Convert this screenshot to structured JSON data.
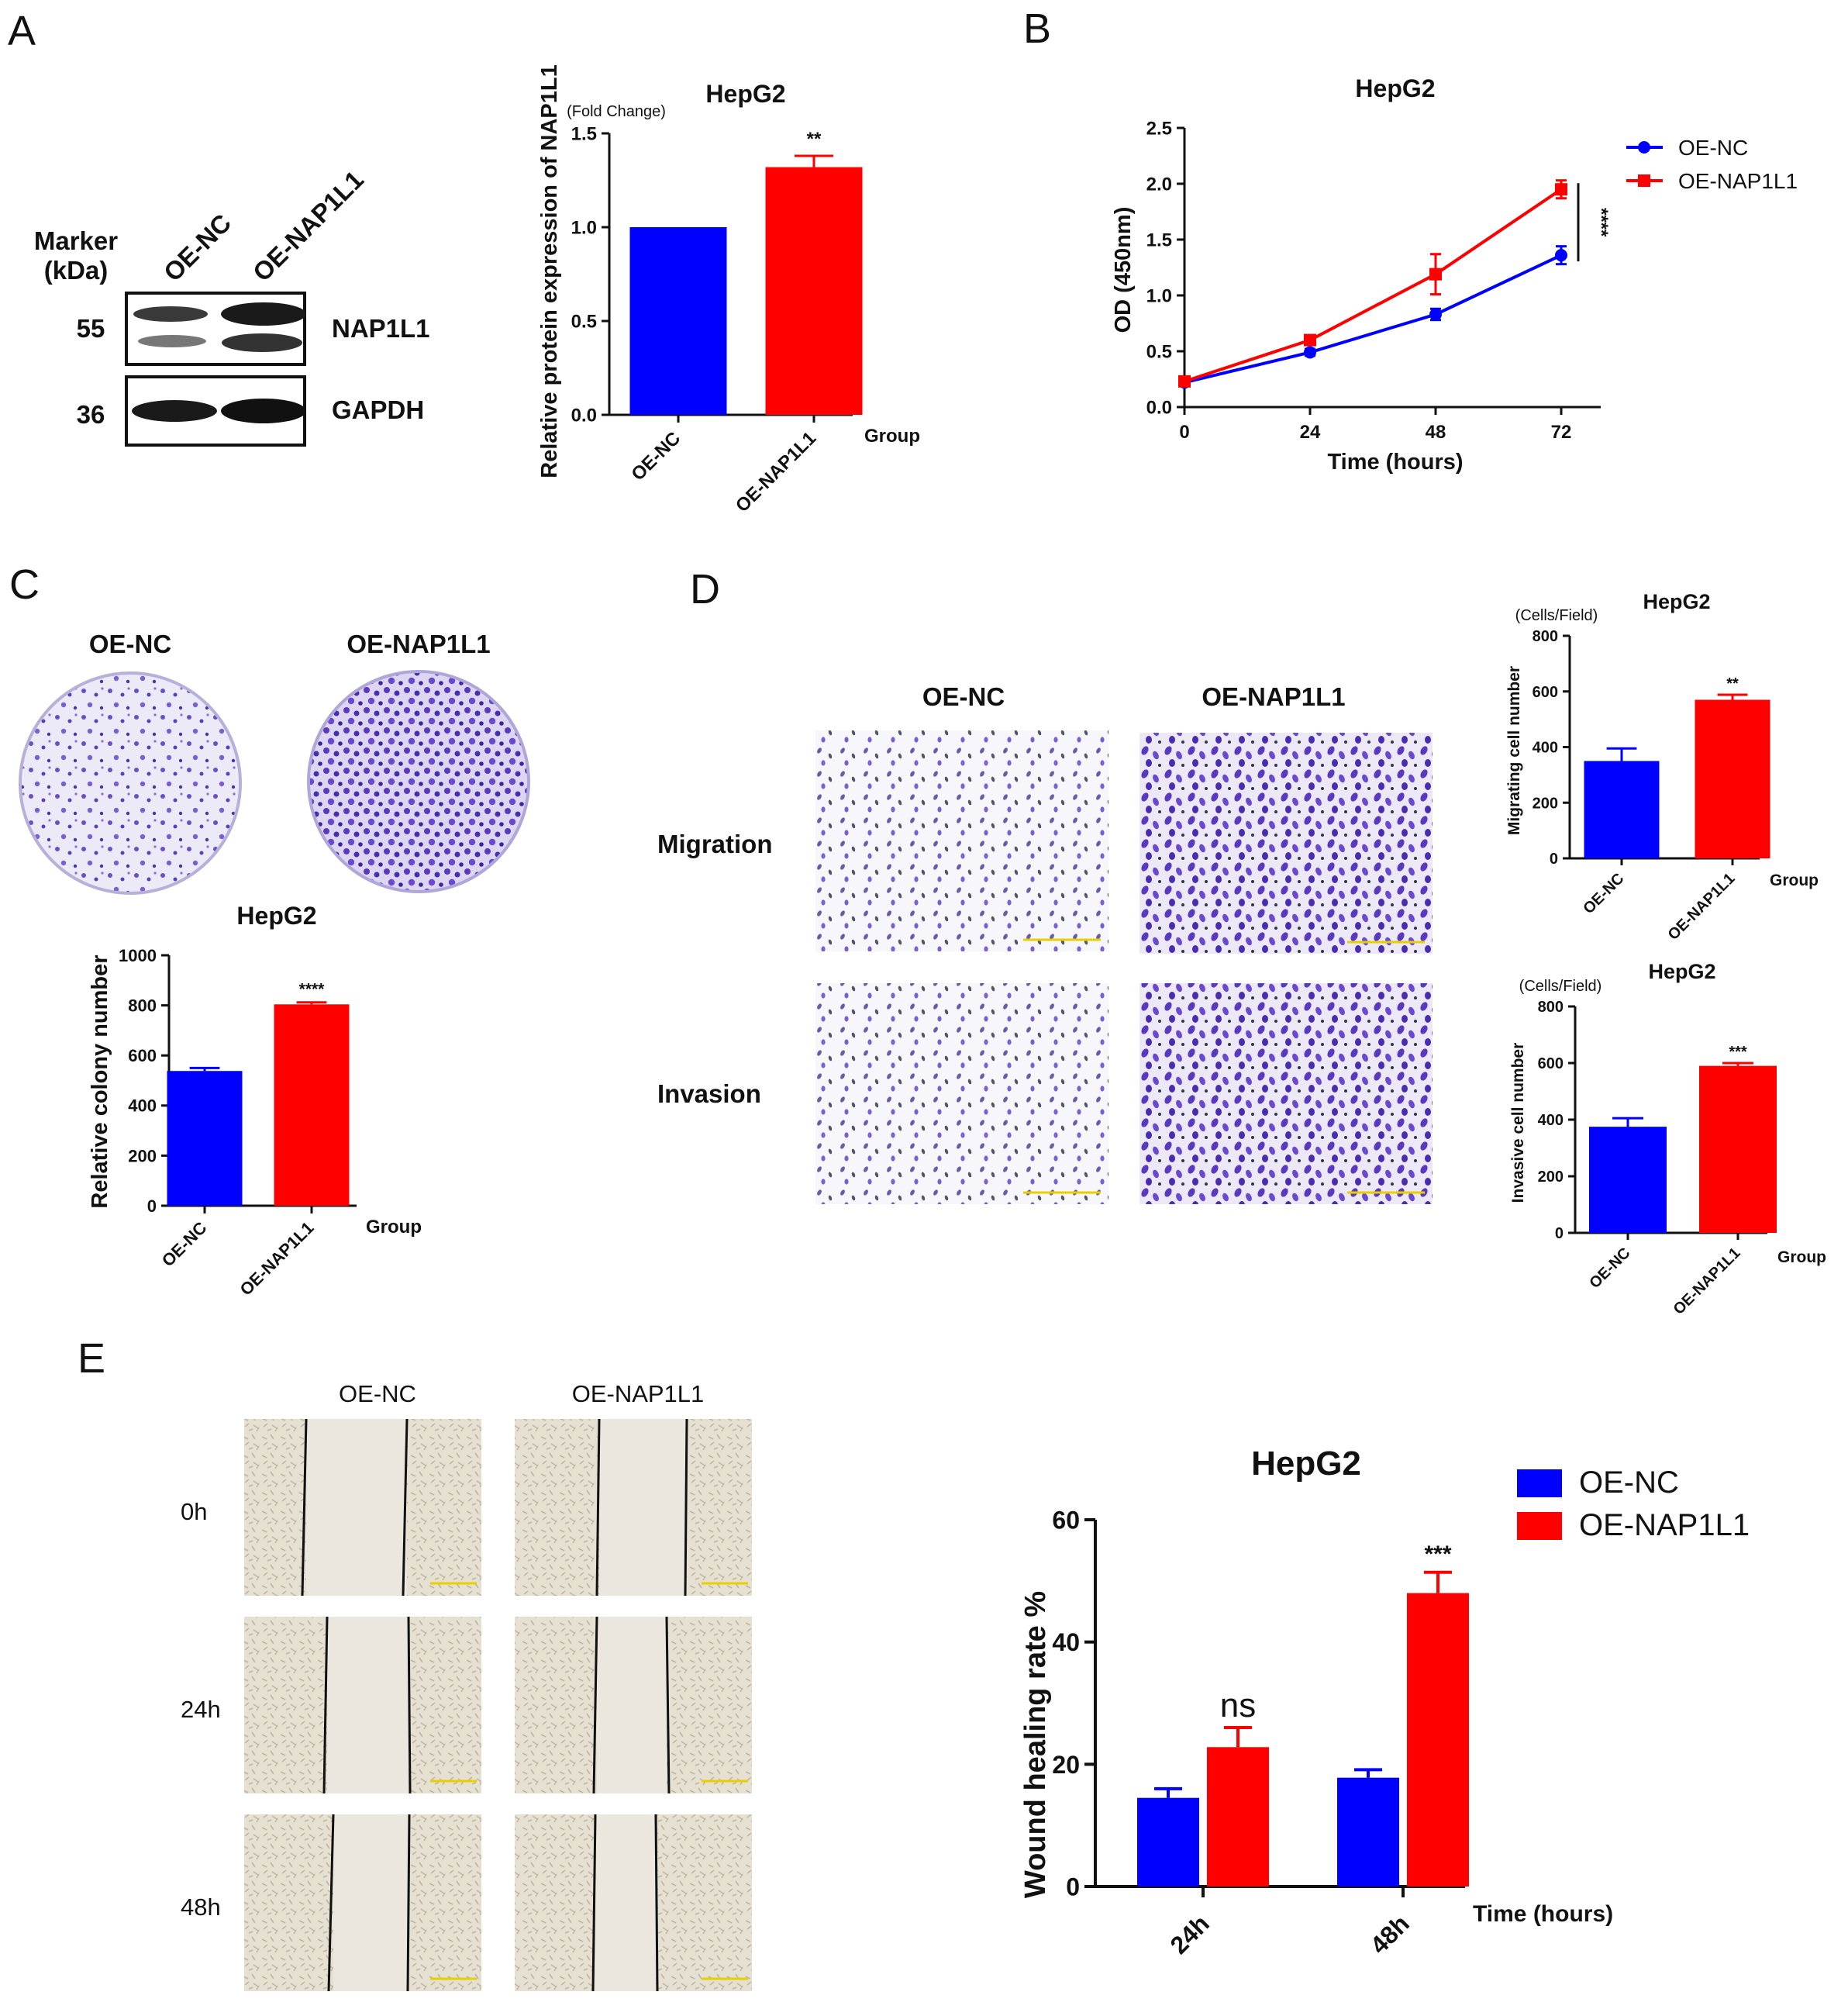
{
  "colors": {
    "oe_nc": "#0000ff",
    "oe_nap1l1": "#ff0000",
    "stain": "#6a4fc4",
    "wound_bg": "#e8e2d4"
  },
  "panels": {
    "A": {
      "letter": "A",
      "blot": {
        "marker_label": "Marker",
        "kda_label": "(kDa)",
        "lanes": [
          "OE-NC",
          "OE-NAP1L1"
        ],
        "rows": [
          {
            "mw": "55",
            "protein": "NAP1L1"
          },
          {
            "mw": "36",
            "protein": "GAPDH"
          }
        ]
      }
    },
    "B": {
      "letter": "B"
    },
    "C": {
      "letter": "C",
      "dish_labels": [
        "OE-NC",
        "OE-NAP1L1"
      ]
    },
    "D": {
      "letter": "D",
      "col_labels": [
        "OE-NC",
        "OE-NAP1L1"
      ],
      "row_labels": [
        "Migration",
        "Invasion"
      ]
    },
    "E": {
      "letter": "E",
      "col_labels": [
        "OE-NC",
        "OE-NAP1L1"
      ],
      "row_labels": [
        "0h",
        "24h",
        "48h"
      ]
    }
  },
  "chart_data": [
    {
      "id": "A-bar",
      "type": "bar",
      "title": "HepG2",
      "ylabel": "Relative protein expression of NAP1L1",
      "unit_label": "(Fold Change)",
      "xlabel": "Group",
      "categories": [
        "OE-NC",
        "OE-NAP1L1"
      ],
      "values": [
        1.0,
        1.32
      ],
      "errors": [
        0,
        0.06
      ],
      "ylim": [
        0,
        1.5
      ],
      "yticks": [
        "0.0",
        "0.5",
        "1.0",
        "1.5"
      ],
      "significance": [
        {
          "category": "OE-NAP1L1",
          "label": "**"
        }
      ]
    },
    {
      "id": "B-line",
      "type": "line",
      "title": "HepG2",
      "ylabel": "OD (450nm)",
      "xlabel": "Time (hours)",
      "x": [
        0,
        24,
        48,
        72
      ],
      "xticks": [
        "0",
        "24",
        "48",
        "72"
      ],
      "ylim": [
        0,
        2.5
      ],
      "yticks": [
        "0.0",
        "0.5",
        "1.0",
        "1.5",
        "2.0",
        "2.5"
      ],
      "series": [
        {
          "name": "OE-NC",
          "values": [
            0.22,
            0.49,
            0.83,
            1.36
          ],
          "errors": [
            0.02,
            0.03,
            0.05,
            0.08
          ]
        },
        {
          "name": "OE-NAP1L1",
          "values": [
            0.23,
            0.6,
            1.19,
            1.95
          ],
          "errors": [
            0.02,
            0.04,
            0.18,
            0.08
          ]
        }
      ],
      "legend": "top-right",
      "significance": "****"
    },
    {
      "id": "C-bar",
      "type": "bar",
      "title": "HepG2",
      "ylabel": "Relative colony number",
      "xlabel": "Group",
      "categories": [
        "OE-NC",
        "OE-NAP1L1"
      ],
      "values": [
        538,
        804
      ],
      "errors": [
        12,
        8
      ],
      "ylim": [
        0,
        1000
      ],
      "yticks": [
        "0",
        "200",
        "400",
        "600",
        "800",
        "1000"
      ],
      "significance": [
        {
          "category": "OE-NAP1L1",
          "label": "****"
        }
      ]
    },
    {
      "id": "D-migration",
      "type": "bar",
      "title": "HepG2",
      "ylabel": "Migrating cell number",
      "unit_label": "(Cells/Field)",
      "xlabel": "Group",
      "categories": [
        "OE-NC",
        "OE-NAP1L1"
      ],
      "values": [
        350,
        570
      ],
      "errors": [
        45,
        18
      ],
      "ylim": [
        0,
        800
      ],
      "yticks": [
        "0",
        "200",
        "400",
        "600",
        "800"
      ],
      "significance": [
        {
          "category": "OE-NAP1L1",
          "label": "**"
        }
      ]
    },
    {
      "id": "D-invasion",
      "type": "bar",
      "title": "HepG2",
      "ylabel": "Invasive cell number",
      "unit_label": "(Cells/Field)",
      "xlabel": "Group",
      "categories": [
        "OE-NC",
        "OE-NAP1L1"
      ],
      "values": [
        375,
        590
      ],
      "errors": [
        30,
        10
      ],
      "ylim": [
        0,
        800
      ],
      "yticks": [
        "0",
        "200",
        "400",
        "600",
        "800"
      ],
      "significance": [
        {
          "category": "OE-NAP1L1",
          "label": "***"
        }
      ]
    },
    {
      "id": "E-bar",
      "type": "bar",
      "title": "HepG2",
      "ylabel": "Wound healing rate %",
      "xlabel": "Time (hours)",
      "categories": [
        "24h",
        "48h"
      ],
      "series": [
        {
          "name": "OE-NC",
          "values": [
            14.5,
            17.8
          ],
          "errors": [
            1.5,
            1.3
          ]
        },
        {
          "name": "OE-NAP1L1",
          "values": [
            22.8,
            48.0
          ],
          "errors": [
            3.2,
            3.4
          ]
        }
      ],
      "ylim": [
        0,
        60
      ],
      "yticks": [
        "0",
        "20",
        "40",
        "60"
      ],
      "legend": "top-right",
      "significance": [
        {
          "category": "24h",
          "label": "ns"
        },
        {
          "category": "48h",
          "label": "***"
        }
      ]
    }
  ]
}
